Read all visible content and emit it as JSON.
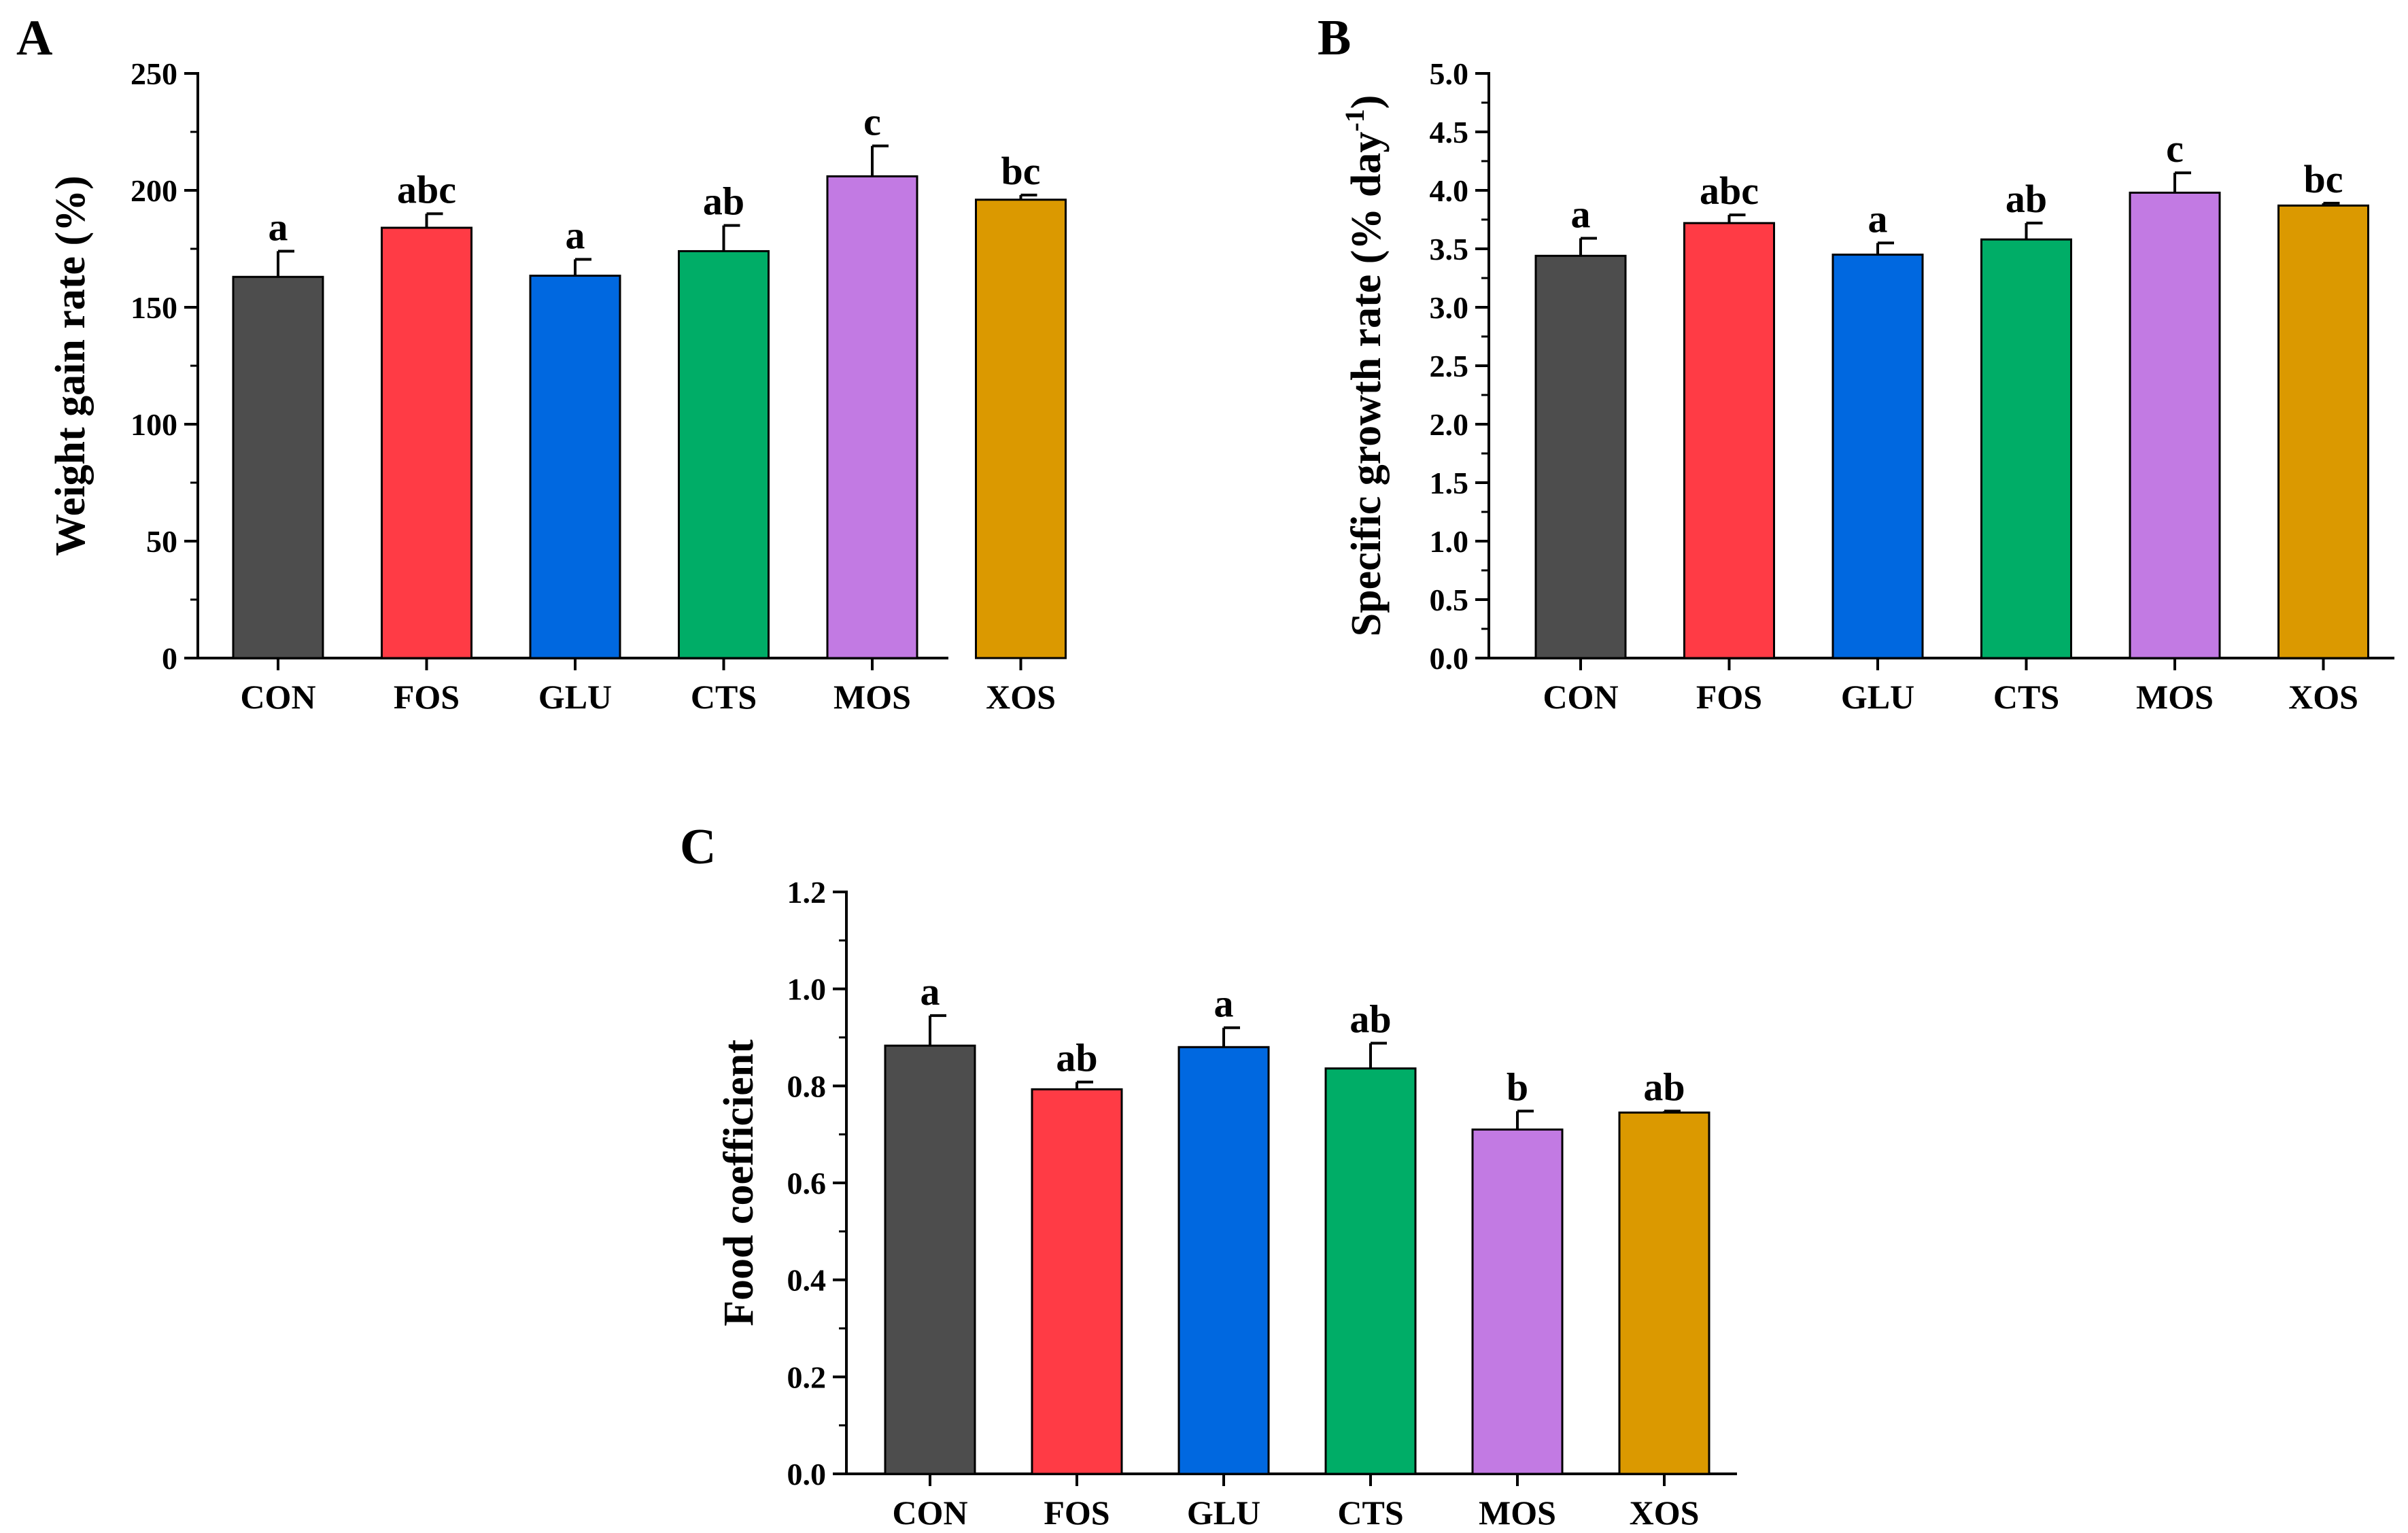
{
  "chart_data": [
    {
      "type": "bar",
      "panel": "A",
      "title": "",
      "xlabel": "",
      "ylabel": "Weight gain rate (%)",
      "ylim": [
        0,
        250
      ],
      "yticks": [
        "0",
        "50",
        "100",
        "150",
        "200",
        "250"
      ],
      "categories": [
        "CON",
        "FOS",
        "GLU",
        "CTS",
        "MOS",
        "XOS"
      ],
      "values": [
        163,
        184,
        163.5,
        174,
        206,
        196
      ],
      "errors": [
        11,
        6,
        7,
        11,
        13,
        2
      ],
      "significance": [
        "a",
        "abc",
        "a",
        "ab",
        "c",
        "bc"
      ]
    },
    {
      "type": "bar",
      "panel": "B",
      "title": "",
      "xlabel": "",
      "ylabel": "Specific growth rate (% day",
      "ylabel_superscript": "-1",
      "ylabel_suffix": ")",
      "ylim": [
        0,
        5.0
      ],
      "yticks": [
        "0.0",
        "0.5",
        "1.0",
        "1.5",
        "2.0",
        "2.5",
        "3.0",
        "3.5",
        "4.0",
        "4.5",
        "5.0"
      ],
      "categories": [
        "CON",
        "FOS",
        "GLU",
        "CTS",
        "MOS",
        "XOS"
      ],
      "values": [
        3.44,
        3.72,
        3.45,
        3.58,
        3.98,
        3.87
      ],
      "errors": [
        0.15,
        0.07,
        0.1,
        0.14,
        0.17,
        0.02
      ],
      "significance": [
        "a",
        "abc",
        "a",
        "ab",
        "c",
        "bc"
      ]
    },
    {
      "type": "bar",
      "panel": "C",
      "title": "",
      "xlabel": "",
      "ylabel": "Food coefficient",
      "ylim": [
        0,
        1.2
      ],
      "yticks": [
        "0.0",
        "0.2",
        "0.4",
        "0.6",
        "0.8",
        "1.0",
        "1.2"
      ],
      "categories": [
        "CON",
        "FOS",
        "GLU",
        "CTS",
        "MOS",
        "XOS"
      ],
      "values": [
        0.883,
        0.793,
        0.88,
        0.836,
        0.71,
        0.745
      ],
      "errors": [
        0.062,
        0.015,
        0.04,
        0.052,
        0.038,
        0.003
      ],
      "significance": [
        "a",
        "ab",
        "a",
        "ab",
        "b",
        "ab"
      ]
    }
  ],
  "colors": [
    "#4d4d4d",
    "#ff3b45",
    "#0068e0",
    "#00ad67",
    "#c27ae3",
    "#db9900"
  ],
  "icons": []
}
